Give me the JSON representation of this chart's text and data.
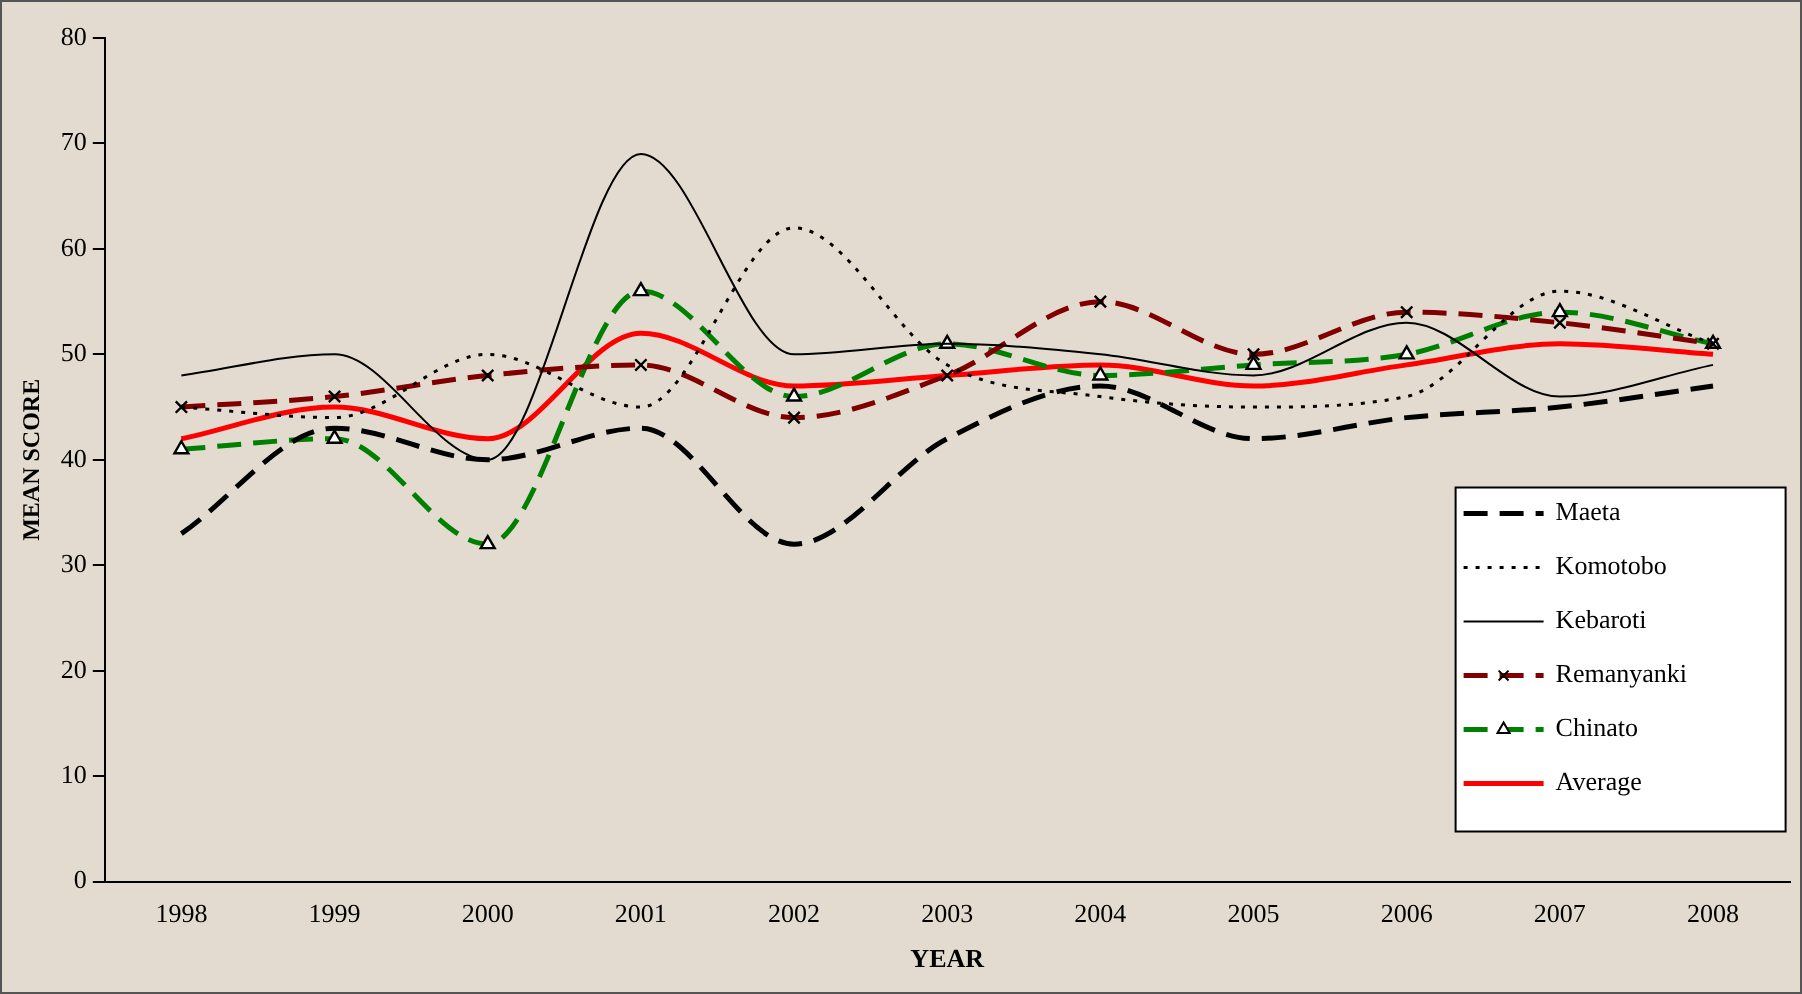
{
  "chart_data": {
    "type": "line",
    "xlabel": "YEAR",
    "ylabel": "MEAN SCORE",
    "categories": [
      "1998",
      "1999",
      "2000",
      "2001",
      "2002",
      "2003",
      "2004",
      "2005",
      "2006",
      "2007",
      "2008"
    ],
    "ylim": [
      0,
      80
    ],
    "yticks": [
      0,
      10,
      20,
      30,
      40,
      50,
      60,
      70,
      80
    ],
    "grid": false,
    "legend": "bottom right",
    "series": [
      {
        "name": "Maeta",
        "color": "#000000",
        "line_style": "dashed",
        "marker": "none",
        "values": [
          33,
          43,
          40,
          43,
          32,
          42,
          47,
          42,
          44,
          45,
          47
        ]
      },
      {
        "name": "Komotobo",
        "color": "#000000",
        "line_style": "dotted",
        "marker": "none",
        "values": [
          45,
          44,
          50,
          45,
          62,
          49,
          46,
          45,
          46,
          56,
          51
        ]
      },
      {
        "name": "Kebaroti",
        "color": "#000000",
        "line_style": "solid",
        "marker": "none",
        "values": [
          48,
          50,
          40,
          69,
          50,
          51,
          50,
          48,
          53,
          46,
          49
        ]
      },
      {
        "name": "Remanyanki",
        "color": "#800000",
        "line_style": "dashed",
        "marker": "cross",
        "values": [
          45,
          46,
          48,
          49,
          44,
          48,
          55,
          50,
          54,
          53,
          51
        ]
      },
      {
        "name": "Chinato",
        "color": "#008000",
        "line_style": "dashed",
        "marker": "triangle",
        "values": [
          41,
          42,
          32,
          56,
          46,
          51,
          48,
          49,
          50,
          54,
          51
        ]
      },
      {
        "name": "Average",
        "color": "#ff0000",
        "line_style": "solid",
        "marker": "none",
        "values": [
          42,
          45,
          42,
          52,
          47,
          48,
          49,
          47,
          49,
          51,
          50
        ]
      }
    ]
  }
}
